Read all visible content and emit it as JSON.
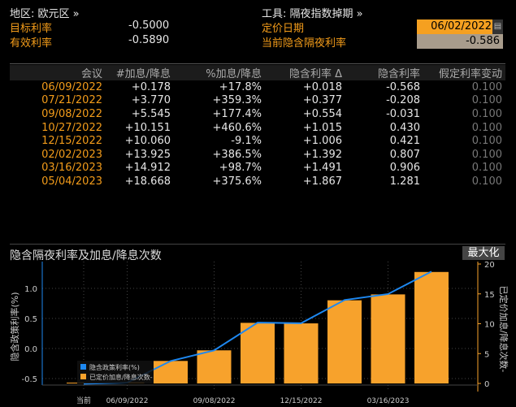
{
  "header": {
    "region_label": "地区: 欧元区 »",
    "tool_label": "工具: 隔夜指数掉期 »",
    "target_rate_label": "目标利率",
    "target_rate_value": "-0.5000",
    "effective_rate_label": "有效利率",
    "effective_rate_value": "-0.5890",
    "pricing_date_label": "定价日期",
    "pricing_date_value": "06/02/2022",
    "current_implied_label": "当前隐含隔夜利率",
    "current_implied_value": "-0.586"
  },
  "table": {
    "columns": [
      "会议",
      "#加息/降息",
      "%加息/降息",
      "隐含利率 Δ",
      "隐含利率",
      "假定利率变动"
    ],
    "rows": [
      [
        "06/09/2022",
        "+0.178",
        "+17.8%",
        "+0.018",
        "-0.568",
        "0.100"
      ],
      [
        "07/21/2022",
        "+3.770",
        "+359.3%",
        "+0.377",
        "-0.208",
        "0.100"
      ],
      [
        "09/08/2022",
        "+5.545",
        "+177.4%",
        "+0.554",
        "-0.031",
        "0.100"
      ],
      [
        "10/27/2022",
        "+10.151",
        "+460.6%",
        "+1.015",
        "0.430",
        "0.100"
      ],
      [
        "12/15/2022",
        "+10.060",
        "-9.1%",
        "+1.006",
        "0.421",
        "0.100"
      ],
      [
        "02/02/2023",
        "+13.925",
        "+386.5%",
        "+1.392",
        "0.807",
        "0.100"
      ],
      [
        "03/16/2023",
        "+14.912",
        "+98.7%",
        "+1.491",
        "0.906",
        "0.100"
      ],
      [
        "05/04/2023",
        "+18.668",
        "+375.6%",
        "+1.867",
        "1.281",
        "0.100"
      ]
    ]
  },
  "chart": {
    "title": "隐含隔夜利率及加息/降息次数",
    "maximize_label": "最大化"
  },
  "chart_data": {
    "type": "bar+line",
    "categories": [
      "当前",
      "06/09/2022",
      "07/21/2022",
      "09/08/2022",
      "10/27/2022",
      "12/15/2022",
      "02/02/2023",
      "03/16/2023",
      "05/04/2023"
    ],
    "x_tick_labels": [
      "当前",
      "06/09/2022",
      "09/08/2022",
      "12/15/2022",
      "03/16/2023"
    ],
    "ylabel_left": "隐含政策利率(%)",
    "ylabel_right": "已定价加息/降息次数-",
    "yticks_left": [
      "1.0",
      "0.5",
      "0.0",
      "-0.5"
    ],
    "yticks_right": [
      "20",
      "15",
      "10",
      "5",
      "0"
    ],
    "ylim_left": [
      -0.7,
      1.35
    ],
    "ylim_right": [
      -1,
      20
    ],
    "series": [
      {
        "name": "隐含政策利率(%)",
        "type": "line",
        "axis": "left",
        "color": "#1e88f0",
        "values": [
          -0.586,
          -0.568,
          -0.208,
          -0.031,
          0.43,
          0.421,
          0.807,
          0.906,
          1.281
        ]
      },
      {
        "name": "已定价加息/降息次数-",
        "type": "bar",
        "axis": "right",
        "color": "#f7a22c",
        "values": [
          0,
          0.178,
          3.77,
          5.545,
          10.151,
          10.06,
          13.925,
          14.912,
          18.668
        ]
      }
    ],
    "legend": "bottom-left",
    "grid": true
  }
}
